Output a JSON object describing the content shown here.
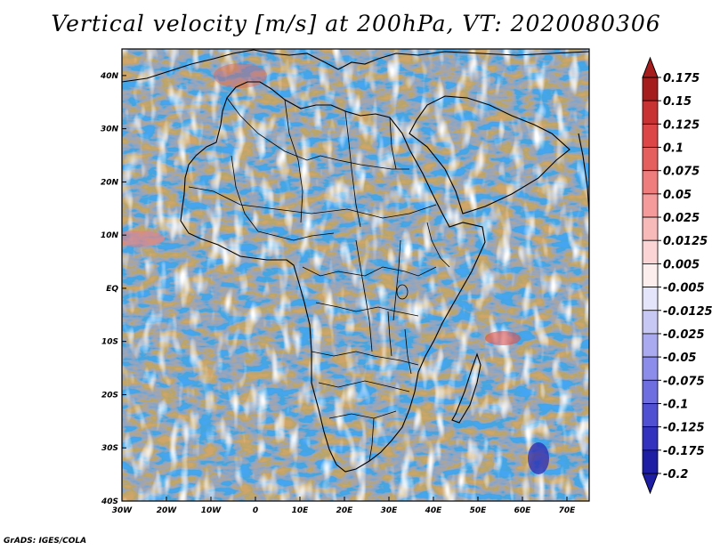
{
  "title": "Vertical velocity [m/s] at 200hPa, VT: 2020080306",
  "credit": "GrADS: IGES/COLA",
  "map": {
    "variable": "vertical velocity",
    "units": "m/s",
    "level": "200hPa",
    "lon_range": [
      -30,
      75
    ],
    "lat_range": [
      -40,
      45
    ],
    "lon_ticks": [
      {
        "value": -30,
        "label": "30W"
      },
      {
        "value": -20,
        "label": "20W"
      },
      {
        "value": -10,
        "label": "10W"
      },
      {
        "value": 0,
        "label": "0"
      },
      {
        "value": 10,
        "label": "10E"
      },
      {
        "value": 20,
        "label": "20E"
      },
      {
        "value": 30,
        "label": "30E"
      },
      {
        "value": 40,
        "label": "40E"
      },
      {
        "value": 50,
        "label": "50E"
      },
      {
        "value": 60,
        "label": "60E"
      },
      {
        "value": 70,
        "label": "70E"
      }
    ],
    "lat_ticks": [
      {
        "value": 40,
        "label": "40N"
      },
      {
        "value": 30,
        "label": "30N"
      },
      {
        "value": 20,
        "label": "20N"
      },
      {
        "value": 10,
        "label": "10N"
      },
      {
        "value": 0,
        "label": "EQ"
      },
      {
        "value": -10,
        "label": "10S"
      },
      {
        "value": -20,
        "label": "20S"
      },
      {
        "value": -30,
        "label": "30S"
      },
      {
        "value": -40,
        "label": "40S"
      }
    ]
  },
  "colorbar": {
    "levels": [
      {
        "label": "0.175",
        "color": "#a51d1d"
      },
      {
        "label": "0.15",
        "color": "#c83232"
      },
      {
        "label": "0.125",
        "color": "#dc4646"
      },
      {
        "label": "0.1",
        "color": "#e65f5f"
      },
      {
        "label": "0.075",
        "color": "#f07d7d"
      },
      {
        "label": "0.05",
        "color": "#f59b9b"
      },
      {
        "label": "0.025",
        "color": "#f8b9b9"
      },
      {
        "label": "0.0125",
        "color": "#fbd5d5"
      },
      {
        "label": "0.005",
        "color": "#fdeeee"
      },
      {
        "label": "-0.005",
        "color": "#ffffff"
      },
      {
        "label": "-0.0125",
        "color": "#e4e4fb"
      },
      {
        "label": "-0.025",
        "color": "#c8c8f5"
      },
      {
        "label": "-0.05",
        "color": "#aaaaf0"
      },
      {
        "label": "-0.075",
        "color": "#8c8ceb"
      },
      {
        "label": "-0.1",
        "color": "#6e6ee1"
      },
      {
        "label": "-0.125",
        "color": "#5050d2"
      },
      {
        "label": "-0.175",
        "color": "#3232be"
      },
      {
        "label": "-0.2",
        "color": "#1e1ea5"
      }
    ],
    "top_color": "#a51d1d",
    "bottom_color": "#1e1ea5"
  }
}
